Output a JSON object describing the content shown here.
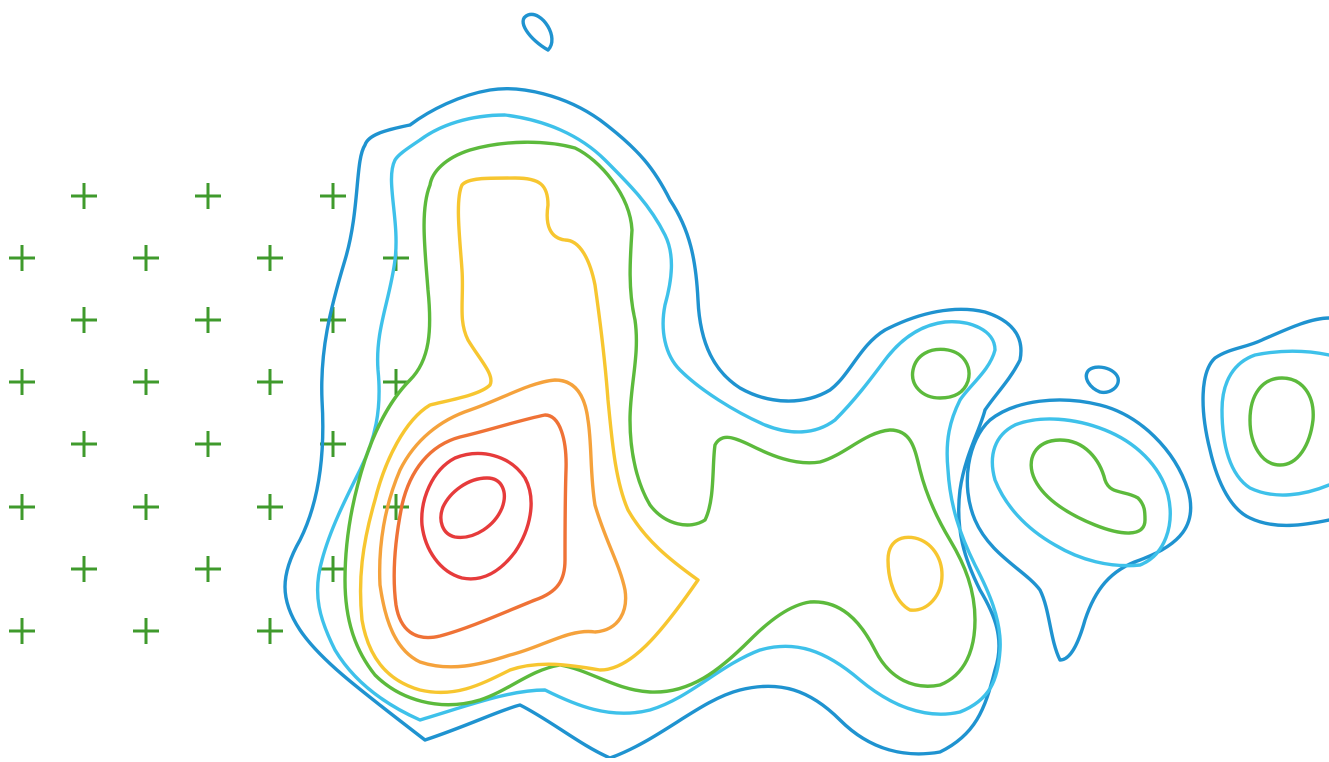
{
  "contour_levels": [
    {
      "level": 1,
      "color": "#1f93d0"
    },
    {
      "level": 2,
      "color": "#3ec1ea"
    },
    {
      "level": 3,
      "color": "#5cba3c"
    },
    {
      "level": 4,
      "color": "#f7c630"
    },
    {
      "level": 5,
      "color": "#f5a23c"
    },
    {
      "level": 6,
      "color": "#ef7236"
    },
    {
      "level": 7,
      "color": "#e63b3b"
    }
  ],
  "plus_marker": {
    "icon": "plus-icon",
    "color": "#3f9a2c",
    "count": 29
  }
}
